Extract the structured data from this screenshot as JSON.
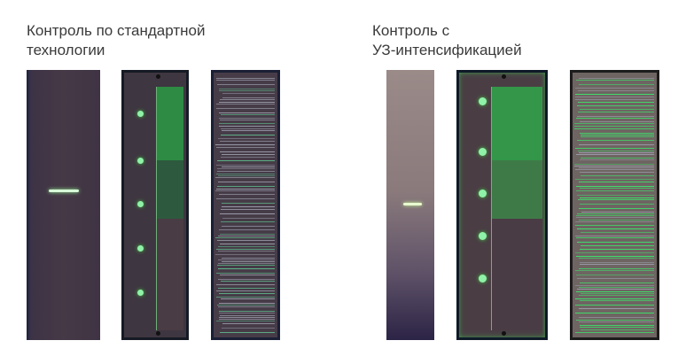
{
  "left_group": {
    "title": "Контроль по стандартной\nтехнологии"
  },
  "right_group": {
    "title": "Контроль с\nУЗ-интенсификацией"
  },
  "colors": {
    "indication": "#7CF29A",
    "background": "#FFFFFF",
    "title_text": "#3A3A3A"
  }
}
